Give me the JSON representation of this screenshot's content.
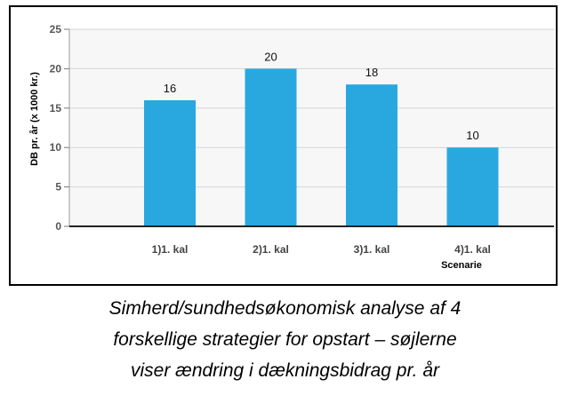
{
  "chart_data": {
    "type": "bar",
    "categories": [
      "1)1. kal",
      "2)1. kal",
      "3)1. kal",
      "4)1. kal"
    ],
    "values": [
      16,
      20,
      18,
      10
    ],
    "title": "",
    "xlabel": "Scenarie",
    "ylabel": "DB pr. år (x 1000 kr.)",
    "ylim": [
      0,
      25
    ],
    "yticks": [
      0,
      5,
      10,
      15,
      20,
      25
    ],
    "grid": true,
    "bar_color": "#29a8e0",
    "data_labels": [
      "16",
      "20",
      "18",
      "10"
    ]
  },
  "caption": {
    "lines": [
      "Simherd/sundhedsøkonomisk analyse af 4",
      "forskellige strategier for opstart – søjlerne",
      "viser ændring i dækningsbidrag pr. år"
    ]
  }
}
